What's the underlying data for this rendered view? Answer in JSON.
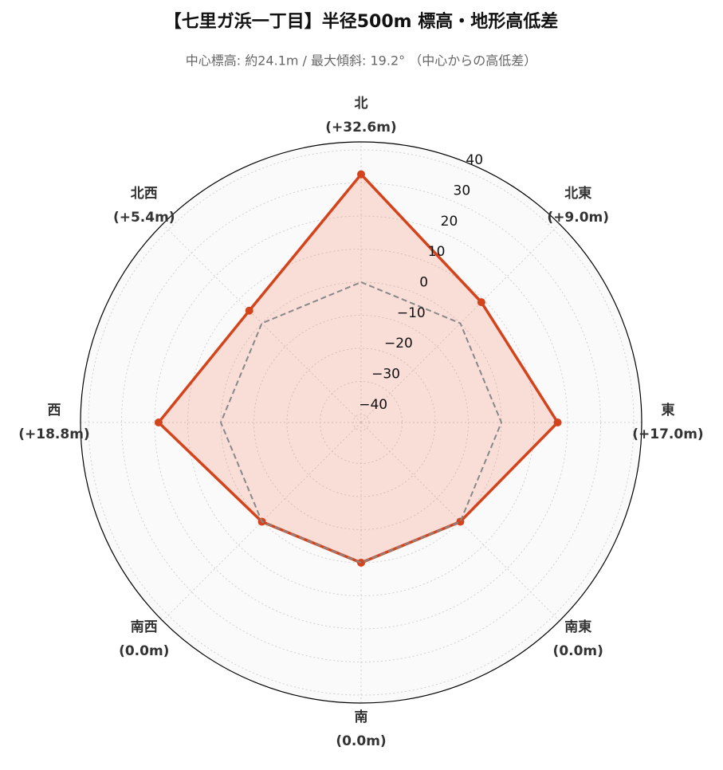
{
  "chart_data": {
    "type": "radar",
    "title": "【七里ガ浜一丁目】半径500m 標高・地形高低差",
    "subtitle": "中心標高: 約24.1m / 最大傾斜: 19.2° （中心からの高低差）",
    "categories": [
      "北",
      "北東",
      "東",
      "南東",
      "南",
      "南西",
      "西",
      "北西"
    ],
    "series": [
      {
        "color": "#d4441c",
        "fill": "rgba(244,120,90,0.22)",
        "values": [
          32.6,
          9.0,
          17.0,
          0.0,
          0.0,
          0.0,
          18.8,
          5.4
        ],
        "value_labels": [
          "(+32.6m)",
          "(+9.0m)",
          "(+17.0m)",
          "(0.0m)",
          "(0.0m)",
          "(0.0m)",
          "(+18.8m)",
          "(+5.4m)"
        ]
      },
      {
        "color": "#888888",
        "dashed": true,
        "values": [
          0,
          0,
          0,
          0,
          0,
          0,
          0,
          0
        ]
      }
    ],
    "ylim": [
      -42.4,
      42.4
    ],
    "yticks": [
      {
        "value": -40,
        "label": "−40"
      },
      {
        "value": -30,
        "label": "−30"
      },
      {
        "value": -20,
        "label": "−20"
      },
      {
        "value": -10,
        "label": "−10"
      },
      0,
      10,
      20,
      30,
      40
    ],
    "grid": true
  }
}
